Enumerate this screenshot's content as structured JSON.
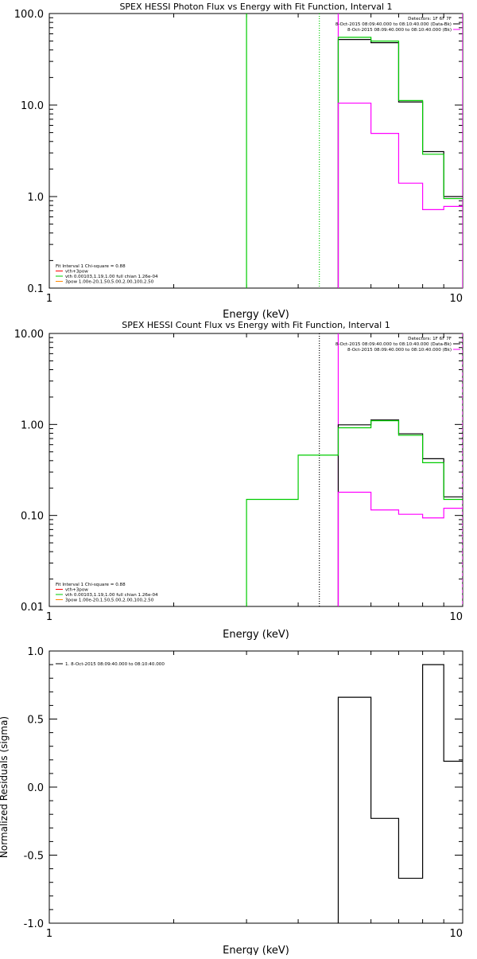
{
  "chart_data": [
    {
      "type": "line",
      "title": "SPEX HESSI Photon Flux vs Energy with Fit Function, Interval 1",
      "xlabel": "Energy (keV)",
      "ylabel": "",
      "xscale": "log",
      "yscale": "log",
      "xlim": [
        1,
        10
      ],
      "ylim": [
        0.1,
        100
      ],
      "xticks": [
        {
          "v": 1,
          "label": "1"
        },
        {
          "v": 10,
          "label": "10"
        }
      ],
      "yticks": [
        {
          "v": 0.1,
          "label": "0.1"
        },
        {
          "v": 1,
          "label": "1.0"
        },
        {
          "v": 10,
          "label": "10.0"
        },
        {
          "v": 100,
          "label": "100.0"
        }
      ],
      "header": [
        "Detectors: 1F 6F 7F",
        "8-Oct-2015 08:09:40.000 to 08:10:40.000 (Data-Bk)",
        "8-Oct-2015 08:09:40.000 to 08:10:40.000 (Bk)"
      ],
      "header_colors": [
        "",
        "#000000",
        "#ff00ff"
      ],
      "legend": [
        "Fit Interval 1    Chi-square = 0.88",
        "vth+3pow",
        "vth 0.00103,1.19,1.00  full chian 1.26e-04",
        "3pow 1.00e-20,1.50,5.00,2.00,100,2.50"
      ],
      "legend_colors": [
        "",
        "#ff0000",
        "#00cc00",
        "#ff8800"
      ],
      "vlines": [
        {
          "x": 3,
          "color": "#00cc00",
          "style": "solid"
        },
        {
          "x": 4.5,
          "color": "#00cc00",
          "style": "dotted"
        },
        {
          "x": 5.0,
          "color": "#ff00ff",
          "style": "solid"
        },
        {
          "x": 10,
          "color": "#ff00ff",
          "style": "solid"
        }
      ],
      "series": [
        {
          "color": "#000000",
          "edges": [
            5.0,
            6.0,
            7.0,
            8.0,
            9.0,
            10.0
          ],
          "values": [
            52,
            48,
            10.8,
            3.1,
            1.0
          ]
        },
        {
          "color": "#00cc00",
          "edges": [
            5.0,
            6.0,
            7.0,
            8.0,
            9.0,
            10.0
          ],
          "values": [
            55,
            50,
            11.2,
            2.9,
            0.95
          ]
        },
        {
          "color": "#ff00ff",
          "edges": [
            5.0,
            6.0,
            7.0,
            8.0,
            9.0,
            10.0
          ],
          "values": [
            10.5,
            4.9,
            1.4,
            0.72,
            0.78
          ]
        }
      ]
    },
    {
      "type": "line",
      "title": "SPEX HESSI Count Flux vs Energy with Fit Function, Interval 1",
      "xlabel": "Energy (keV)",
      "ylabel": "",
      "xscale": "log",
      "yscale": "log",
      "xlim": [
        1,
        10
      ],
      "ylim": [
        0.01,
        10
      ],
      "xticks": [
        {
          "v": 1,
          "label": "1"
        },
        {
          "v": 10,
          "label": "10"
        }
      ],
      "yticks": [
        {
          "v": 0.01,
          "label": "0.01"
        },
        {
          "v": 0.1,
          "label": "0.10"
        },
        {
          "v": 1,
          "label": "1.00"
        },
        {
          "v": 10,
          "label": "10.00"
        }
      ],
      "header": [
        "Detectors: 1F 6F 7F",
        "8-Oct-2015 08:09:40.000 to 08:10:40.000 (Data-Bk)",
        "8-Oct-2015 08:09:40.000 to 08:10:40.000 (Bk)"
      ],
      "header_colors": [
        "",
        "#000000",
        "#ff00ff"
      ],
      "legend": [
        "Fit Interval 1    Chi-square = 0.88",
        "vth+3pow",
        "vth 0.00103,1.19,1.00  full chian 1.26e-04",
        "3pow 1.00e-20,1.50,5.00,2.00,100,2.50"
      ],
      "legend_colors": [
        "",
        "#ff0000",
        "#00cc00",
        "#ff8800"
      ],
      "vlines": [
        {
          "x": 4.5,
          "color": "#000000",
          "style": "dotted"
        },
        {
          "x": 5.0,
          "color": "#ff00ff",
          "style": "solid"
        },
        {
          "x": 10,
          "color": "#ff00ff",
          "style": "dashed"
        }
      ],
      "series": [
        {
          "color": "#000000",
          "edges": [
            5.0,
            6.0,
            7.0,
            8.0,
            9.0,
            10.0
          ],
          "values": [
            0.99,
            1.12,
            0.79,
            0.42,
            0.16
          ]
        },
        {
          "color": "#00cc00",
          "edges": [
            3.0,
            4.0,
            5.0,
            6.0,
            7.0,
            8.0,
            9.0,
            10.0
          ],
          "values": [
            0.15,
            0.46,
            0.92,
            1.1,
            0.76,
            0.38,
            0.15
          ]
        },
        {
          "color": "#ff00ff",
          "edges": [
            5.0,
            6.0,
            7.0,
            8.0,
            9.0,
            10.0
          ],
          "values": [
            0.18,
            0.115,
            0.103,
            0.094,
            0.12
          ]
        }
      ]
    },
    {
      "type": "line",
      "title": "",
      "xlabel": "Energy (keV)",
      "ylabel": "Normalized Residuals (sigma)",
      "xscale": "log",
      "yscale": "linear",
      "xlim": [
        1,
        10
      ],
      "ylim": [
        -1.0,
        1.0
      ],
      "xticks": [
        {
          "v": 1,
          "label": "1"
        },
        {
          "v": 10,
          "label": "10"
        }
      ],
      "yticks": [
        {
          "v": -1.0,
          "label": "-1.0"
        },
        {
          "v": -0.5,
          "label": "-0.5"
        },
        {
          "v": 0.0,
          "label": "0.0"
        },
        {
          "v": 0.5,
          "label": "0.5"
        },
        {
          "v": 1.0,
          "label": "1.0"
        }
      ],
      "header": [],
      "header_colors": [],
      "legend": [
        "1.  8-Oct-2015 08:09:40.000 to 08:10:40.000"
      ],
      "legend_colors": [
        "#000000"
      ],
      "vlines": [],
      "series": [
        {
          "color": "#000000",
          "edges": [
            5.0,
            6.0,
            7.0,
            8.0,
            9.0,
            10.0
          ],
          "values": [
            0.66,
            -0.23,
            -0.67,
            0.9,
            0.19
          ],
          "drop_to": -1.0
        }
      ]
    }
  ]
}
